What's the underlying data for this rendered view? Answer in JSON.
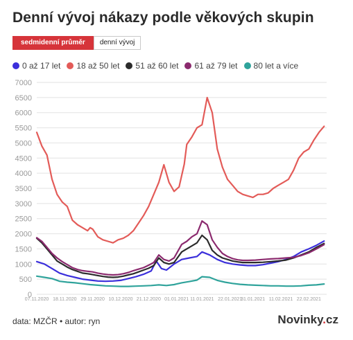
{
  "title": "Denní vývoj nákazy podle věkových skupin",
  "tabs": [
    {
      "label": "sedmidenní průměr",
      "active": true
    },
    {
      "label": "denní vývoj",
      "active": false
    }
  ],
  "footer": {
    "source": "data: MZČR • autor: ryn",
    "logo_main": "Novinky",
    "logo_dot": ".",
    "logo_tld": "cz"
  },
  "chart_data": {
    "type": "line",
    "title": "Denní vývoj nákazy podle věkových skupin",
    "xlabel": "",
    "ylabel": "",
    "ylim": [
      0,
      7000
    ],
    "yticks": [
      "0",
      "500",
      "1000",
      "1500",
      "2000",
      "2500",
      "3000",
      "3500",
      "4000",
      "4500",
      "5000",
      "5500",
      "6000",
      "6500",
      "7000"
    ],
    "grid": true,
    "x_start": "2020-11-07",
    "x_tick_labels": [
      "07.11.2020",
      "18.11.2020",
      "29.11.2020",
      "10.12.2020",
      "21.12.2020",
      "01.01.2021",
      "11.01.2021",
      "22.01.2021",
      "31.01.2021",
      "11.02.2021",
      "22.02.2021"
    ],
    "x_tick_dates": [
      "2020-11-07",
      "2020-11-18",
      "2020-11-29",
      "2020-12-10",
      "2020-12-21",
      "2021-01-01",
      "2021-01-11",
      "2021-01-22",
      "2021-01-31",
      "2021-02-11",
      "2021-02-22"
    ],
    "series": [
      {
        "name": "0 až 17 let",
        "color": "#3b2fdb",
        "points": [
          [
            "2020-11-07",
            1080
          ],
          [
            "2020-11-10",
            1000
          ],
          [
            "2020-11-13",
            850
          ],
          [
            "2020-11-16",
            700
          ],
          [
            "2020-11-19",
            620
          ],
          [
            "2020-11-22",
            560
          ],
          [
            "2020-11-25",
            500
          ],
          [
            "2020-11-28",
            470
          ],
          [
            "2020-12-01",
            440
          ],
          [
            "2020-12-04",
            430
          ],
          [
            "2020-12-07",
            440
          ],
          [
            "2020-12-10",
            460
          ],
          [
            "2020-12-13",
            520
          ],
          [
            "2020-12-16",
            580
          ],
          [
            "2020-12-19",
            660
          ],
          [
            "2020-12-22",
            770
          ],
          [
            "2020-12-24",
            1100
          ],
          [
            "2020-12-26",
            850
          ],
          [
            "2020-12-28",
            800
          ],
          [
            "2020-12-31",
            1000
          ],
          [
            "2021-01-03",
            1150
          ],
          [
            "2021-01-06",
            1200
          ],
          [
            "2021-01-09",
            1250
          ],
          [
            "2021-01-11",
            1400
          ],
          [
            "2021-01-14",
            1300
          ],
          [
            "2021-01-17",
            1150
          ],
          [
            "2021-01-20",
            1050
          ],
          [
            "2021-01-23",
            1000
          ],
          [
            "2021-01-26",
            970
          ],
          [
            "2021-01-29",
            950
          ],
          [
            "2021-02-01",
            950
          ],
          [
            "2021-02-04",
            980
          ],
          [
            "2021-02-07",
            1030
          ],
          [
            "2021-02-10",
            1080
          ],
          [
            "2021-02-13",
            1150
          ],
          [
            "2021-02-16",
            1250
          ],
          [
            "2021-02-19",
            1400
          ],
          [
            "2021-02-22",
            1500
          ],
          [
            "2021-02-25",
            1620
          ],
          [
            "2021-02-28",
            1760
          ]
        ]
      },
      {
        "name": "18 až 50 let",
        "color": "#e35b58",
        "points": [
          [
            "2020-11-07",
            5350
          ],
          [
            "2020-11-09",
            4900
          ],
          [
            "2020-11-11",
            4600
          ],
          [
            "2020-11-13",
            3800
          ],
          [
            "2020-11-15",
            3300
          ],
          [
            "2020-11-17",
            3050
          ],
          [
            "2020-11-19",
            2900
          ],
          [
            "2020-11-21",
            2450
          ],
          [
            "2020-11-23",
            2300
          ],
          [
            "2020-11-25",
            2200
          ],
          [
            "2020-11-27",
            2100
          ],
          [
            "2020-11-28",
            2200
          ],
          [
            "2020-11-29",
            2150
          ],
          [
            "2020-12-01",
            1900
          ],
          [
            "2020-12-03",
            1800
          ],
          [
            "2020-12-05",
            1750
          ],
          [
            "2020-12-07",
            1700
          ],
          [
            "2020-12-09",
            1800
          ],
          [
            "2020-12-11",
            1850
          ],
          [
            "2020-12-13",
            1950
          ],
          [
            "2020-12-15",
            2100
          ],
          [
            "2020-12-17",
            2350
          ],
          [
            "2020-12-19",
            2600
          ],
          [
            "2020-12-21",
            2900
          ],
          [
            "2020-12-23",
            3300
          ],
          [
            "2020-12-25",
            3700
          ],
          [
            "2020-12-27",
            4280
          ],
          [
            "2020-12-29",
            3700
          ],
          [
            "2020-12-31",
            3400
          ],
          [
            "2021-01-02",
            3550
          ],
          [
            "2021-01-04",
            4300
          ],
          [
            "2021-01-05",
            4950
          ],
          [
            "2021-01-07",
            5200
          ],
          [
            "2021-01-09",
            5500
          ],
          [
            "2021-01-11",
            5600
          ],
          [
            "2021-01-13",
            6500
          ],
          [
            "2021-01-15",
            6000
          ],
          [
            "2021-01-17",
            4800
          ],
          [
            "2021-01-19",
            4200
          ],
          [
            "2021-01-21",
            3800
          ],
          [
            "2021-01-23",
            3600
          ],
          [
            "2021-01-25",
            3400
          ],
          [
            "2021-01-27",
            3300
          ],
          [
            "2021-01-29",
            3250
          ],
          [
            "2021-01-31",
            3200
          ],
          [
            "2021-02-02",
            3300
          ],
          [
            "2021-02-04",
            3300
          ],
          [
            "2021-02-06",
            3350
          ],
          [
            "2021-02-08",
            3500
          ],
          [
            "2021-02-10",
            3600
          ],
          [
            "2021-02-12",
            3700
          ],
          [
            "2021-02-14",
            3800
          ],
          [
            "2021-02-16",
            4100
          ],
          [
            "2021-02-18",
            4500
          ],
          [
            "2021-02-20",
            4700
          ],
          [
            "2021-02-22",
            4800
          ],
          [
            "2021-02-24",
            5100
          ],
          [
            "2021-02-26",
            5350
          ],
          [
            "2021-02-28",
            5550
          ]
        ]
      },
      {
        "name": "51 až 60 let",
        "color": "#2b2b2b",
        "points": [
          [
            "2020-11-07",
            1850
          ],
          [
            "2020-11-09",
            1700
          ],
          [
            "2020-11-11",
            1500
          ],
          [
            "2020-11-13",
            1300
          ],
          [
            "2020-11-15",
            1100
          ],
          [
            "2020-11-17",
            1000
          ],
          [
            "2020-11-19",
            900
          ],
          [
            "2020-11-21",
            820
          ],
          [
            "2020-11-23",
            760
          ],
          [
            "2020-11-25",
            700
          ],
          [
            "2020-11-27",
            680
          ],
          [
            "2020-11-29",
            650
          ],
          [
            "2020-12-01",
            620
          ],
          [
            "2020-12-03",
            590
          ],
          [
            "2020-12-05",
            570
          ],
          [
            "2020-12-07",
            560
          ],
          [
            "2020-12-09",
            570
          ],
          [
            "2020-12-11",
            600
          ],
          [
            "2020-12-13",
            640
          ],
          [
            "2020-12-15",
            680
          ],
          [
            "2020-12-17",
            740
          ],
          [
            "2020-12-19",
            800
          ],
          [
            "2020-12-21",
            860
          ],
          [
            "2020-12-23",
            950
          ],
          [
            "2020-12-25",
            1200
          ],
          [
            "2020-12-27",
            1050
          ],
          [
            "2020-12-29",
            1000
          ],
          [
            "2020-12-31",
            1050
          ],
          [
            "2021-01-03",
            1400
          ],
          [
            "2021-01-05",
            1500
          ],
          [
            "2021-01-07",
            1600
          ],
          [
            "2021-01-09",
            1700
          ],
          [
            "2021-01-11",
            1950
          ],
          [
            "2021-01-13",
            1800
          ],
          [
            "2021-01-15",
            1450
          ],
          [
            "2021-01-17",
            1300
          ],
          [
            "2021-01-19",
            1200
          ],
          [
            "2021-01-21",
            1150
          ],
          [
            "2021-01-23",
            1100
          ],
          [
            "2021-01-25",
            1070
          ],
          [
            "2021-01-27",
            1050
          ],
          [
            "2021-01-29",
            1050
          ],
          [
            "2021-02-01",
            1050
          ],
          [
            "2021-02-04",
            1060
          ],
          [
            "2021-02-07",
            1080
          ],
          [
            "2021-02-10",
            1100
          ],
          [
            "2021-02-13",
            1130
          ],
          [
            "2021-02-16",
            1200
          ],
          [
            "2021-02-19",
            1300
          ],
          [
            "2021-02-22",
            1400
          ],
          [
            "2021-02-25",
            1550
          ],
          [
            "2021-02-28",
            1680
          ]
        ]
      },
      {
        "name": "61 až 79 let",
        "color": "#8b2a6e",
        "points": [
          [
            "2020-11-07",
            1870
          ],
          [
            "2020-11-09",
            1750
          ],
          [
            "2020-11-11",
            1550
          ],
          [
            "2020-11-13",
            1350
          ],
          [
            "2020-11-15",
            1200
          ],
          [
            "2020-11-17",
            1080
          ],
          [
            "2020-11-19",
            980
          ],
          [
            "2020-11-21",
            880
          ],
          [
            "2020-11-23",
            820
          ],
          [
            "2020-11-25",
            780
          ],
          [
            "2020-11-27",
            760
          ],
          [
            "2020-11-29",
            740
          ],
          [
            "2020-12-01",
            700
          ],
          [
            "2020-12-03",
            670
          ],
          [
            "2020-12-05",
            650
          ],
          [
            "2020-12-07",
            640
          ],
          [
            "2020-12-09",
            650
          ],
          [
            "2020-12-11",
            680
          ],
          [
            "2020-12-13",
            720
          ],
          [
            "2020-12-15",
            780
          ],
          [
            "2020-12-17",
            830
          ],
          [
            "2020-12-19",
            880
          ],
          [
            "2020-12-21",
            960
          ],
          [
            "2020-12-23",
            1050
          ],
          [
            "2020-12-25",
            1300
          ],
          [
            "2020-12-27",
            1150
          ],
          [
            "2020-12-29",
            1100
          ],
          [
            "2020-12-31",
            1200
          ],
          [
            "2021-01-03",
            1650
          ],
          [
            "2021-01-05",
            1750
          ],
          [
            "2021-01-07",
            1900
          ],
          [
            "2021-01-09",
            2000
          ],
          [
            "2021-01-11",
            2420
          ],
          [
            "2021-01-13",
            2300
          ],
          [
            "2021-01-15",
            1800
          ],
          [
            "2021-01-17",
            1550
          ],
          [
            "2021-01-19",
            1350
          ],
          [
            "2021-01-21",
            1250
          ],
          [
            "2021-01-23",
            1180
          ],
          [
            "2021-01-25",
            1140
          ],
          [
            "2021-01-27",
            1120
          ],
          [
            "2021-01-29",
            1120
          ],
          [
            "2021-02-01",
            1130
          ],
          [
            "2021-02-04",
            1150
          ],
          [
            "2021-02-07",
            1170
          ],
          [
            "2021-02-10",
            1180
          ],
          [
            "2021-02-13",
            1200
          ],
          [
            "2021-02-16",
            1220
          ],
          [
            "2021-02-19",
            1280
          ],
          [
            "2021-02-22",
            1370
          ],
          [
            "2021-02-25",
            1500
          ],
          [
            "2021-02-28",
            1640
          ]
        ]
      },
      {
        "name": "80 let a více",
        "color": "#2fa39b",
        "points": [
          [
            "2020-11-07",
            600
          ],
          [
            "2020-11-10",
            560
          ],
          [
            "2020-11-13",
            520
          ],
          [
            "2020-11-16",
            430
          ],
          [
            "2020-11-19",
            400
          ],
          [
            "2020-11-22",
            380
          ],
          [
            "2020-11-25",
            350
          ],
          [
            "2020-11-28",
            320
          ],
          [
            "2020-12-01",
            300
          ],
          [
            "2020-12-04",
            280
          ],
          [
            "2020-12-07",
            270
          ],
          [
            "2020-12-10",
            260
          ],
          [
            "2020-12-13",
            260
          ],
          [
            "2020-12-16",
            270
          ],
          [
            "2020-12-19",
            280
          ],
          [
            "2020-12-22",
            290
          ],
          [
            "2020-12-25",
            310
          ],
          [
            "2020-12-28",
            290
          ],
          [
            "2020-12-31",
            320
          ],
          [
            "2021-01-03",
            380
          ],
          [
            "2021-01-06",
            420
          ],
          [
            "2021-01-09",
            470
          ],
          [
            "2021-01-11",
            580
          ],
          [
            "2021-01-14",
            560
          ],
          [
            "2021-01-17",
            460
          ],
          [
            "2021-01-20",
            400
          ],
          [
            "2021-01-23",
            360
          ],
          [
            "2021-01-26",
            330
          ],
          [
            "2021-01-29",
            310
          ],
          [
            "2021-02-01",
            300
          ],
          [
            "2021-02-04",
            290
          ],
          [
            "2021-02-07",
            280
          ],
          [
            "2021-02-10",
            280
          ],
          [
            "2021-02-13",
            270
          ],
          [
            "2021-02-16",
            270
          ],
          [
            "2021-02-19",
            280
          ],
          [
            "2021-02-22",
            300
          ],
          [
            "2021-02-25",
            310
          ],
          [
            "2021-02-28",
            340
          ]
        ]
      }
    ]
  }
}
